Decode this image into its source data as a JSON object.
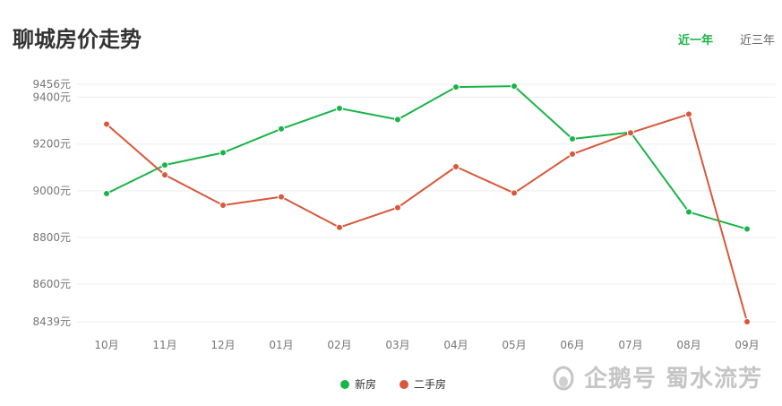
{
  "title": "聊城房价走势",
  "tabs": [
    {
      "label": "近一年",
      "active": true
    },
    {
      "label": "近三年",
      "active": false
    }
  ],
  "watermark": "企鹅号 蜀水流芳",
  "colors": {
    "new_house": "#19b447",
    "second_hand": "#d9573a",
    "grid": "#eeeeee",
    "axis_text": "#777777"
  },
  "chart_data": {
    "type": "line",
    "categories": [
      "10月",
      "11月",
      "12月",
      "01月",
      "02月",
      "03月",
      "04月",
      "05月",
      "06月",
      "07月",
      "08月",
      "09月"
    ],
    "series": [
      {
        "name": "新房",
        "color": "#19b447",
        "values": [
          8988,
          9110,
          9163,
          9265,
          9353,
          9305,
          9444,
          9448,
          9222,
          9250,
          8909,
          8836
        ]
      },
      {
        "name": "二手房",
        "color": "#d9573a",
        "values": [
          9285,
          9068,
          8938,
          8974,
          8843,
          8928,
          9103,
          8990,
          9157,
          9248,
          9328,
          8439
        ]
      }
    ],
    "y_ticks": [
      "8439元",
      "8600元",
      "8800元",
      "9000元",
      "9200元",
      "9400元",
      "9456元"
    ],
    "y_tick_values": [
      8439,
      8600,
      8800,
      9000,
      9200,
      9400,
      9456
    ],
    "ylim": [
      8439,
      9456
    ],
    "grid": true,
    "legend_position": "bottom-center"
  }
}
